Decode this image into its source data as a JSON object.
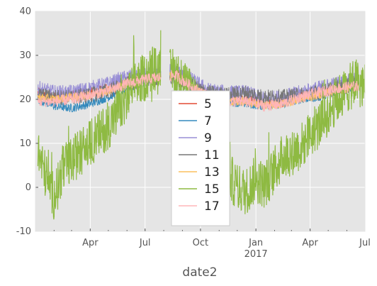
{
  "chart_data": {
    "type": "line",
    "xlabel": "date2",
    "ylabel": "",
    "ylim": [
      -10,
      40
    ],
    "yticks": [
      -10,
      0,
      10,
      20,
      30,
      40
    ],
    "xlim": [
      "2016-01-01",
      "2017-07-01"
    ],
    "xticks": [
      {
        "date": "2016-04-01",
        "label": "Apr"
      },
      {
        "date": "2016-07-01",
        "label": "Jul"
      },
      {
        "date": "2016-10-01",
        "label": "Oct"
      },
      {
        "date": "2017-01-01",
        "label": "Jan",
        "sublabel": "2017"
      },
      {
        "date": "2017-04-01",
        "label": "Apr"
      },
      {
        "date": "2017-07-01",
        "label": "Jul"
      }
    ],
    "grid": true,
    "legend_position": "center",
    "series": [
      {
        "name": "5",
        "color": "#e24a33",
        "points": [
          [
            "2016-01-05",
            21.5
          ],
          [
            "2016-02-01",
            20.5
          ],
          [
            "2016-03-01",
            20.8
          ],
          [
            "2016-04-01",
            21.5
          ],
          [
            "2016-05-01",
            22.5
          ],
          [
            "2016-06-01",
            24.0
          ],
          [
            "2016-07-01",
            25.0
          ],
          [
            "2016-07-27",
            25.5
          ],
          [
            "2016-08-20",
            26.0
          ],
          [
            "2016-09-15",
            23.5
          ],
          [
            "2016-10-15",
            21.0
          ],
          [
            "2016-11-15",
            20.0
          ],
          [
            "2016-12-15",
            20.0
          ],
          [
            "2017-01-15",
            19.0
          ],
          [
            "2017-02-15",
            19.5
          ],
          [
            "2017-03-15",
            20.5
          ],
          [
            "2017-04-15",
            21.5
          ],
          [
            "2017-05-15",
            22.5
          ],
          [
            "2017-06-20",
            23.0
          ]
        ]
      },
      {
        "name": "7",
        "color": "#348abd",
        "points": [
          [
            "2016-01-05",
            20.0
          ],
          [
            "2016-02-01",
            18.5
          ],
          [
            "2016-03-01",
            18.0
          ],
          [
            "2016-04-01",
            19.0
          ],
          [
            "2016-05-01",
            20.5
          ],
          [
            "2016-06-01",
            22.5
          ],
          [
            "2016-07-01",
            24.0
          ],
          [
            "2016-07-27",
            25.0
          ],
          [
            "2016-08-20",
            25.5
          ],
          [
            "2016-09-15",
            22.5
          ],
          [
            "2016-10-15",
            20.5
          ],
          [
            "2016-11-15",
            19.5
          ],
          [
            "2016-12-15",
            19.0
          ],
          [
            "2017-01-15",
            18.5
          ],
          [
            "2017-02-15",
            19.0
          ],
          [
            "2017-03-15",
            20.0
          ],
          [
            "2017-04-15",
            20.5
          ],
          [
            "2017-05-15",
            22.0
          ],
          [
            "2017-06-20",
            23.0
          ]
        ]
      },
      {
        "name": "9",
        "color": "#988ed5",
        "points": [
          [
            "2016-01-05",
            22.5
          ],
          [
            "2016-02-01",
            21.5
          ],
          [
            "2016-03-01",
            21.5
          ],
          [
            "2016-04-01",
            22.5
          ],
          [
            "2016-05-01",
            23.5
          ],
          [
            "2016-06-01",
            25.0
          ],
          [
            "2016-07-01",
            25.5
          ],
          [
            "2016-07-27",
            26.0
          ],
          [
            "2016-08-20",
            26.5
          ],
          [
            "2016-09-15",
            24.5
          ],
          [
            "2016-10-15",
            22.0
          ],
          [
            "2016-11-15",
            21.5
          ],
          [
            "2016-12-15",
            21.5
          ],
          [
            "2017-01-15",
            20.0
          ],
          [
            "2017-02-15",
            20.5
          ],
          [
            "2017-03-15",
            21.5
          ],
          [
            "2017-04-15",
            22.5
          ],
          [
            "2017-05-15",
            23.5
          ],
          [
            "2017-06-20",
            24.5
          ]
        ]
      },
      {
        "name": "11",
        "color": "#777777",
        "points": [
          [
            "2016-01-05",
            21.0
          ],
          [
            "2016-02-01",
            20.5
          ],
          [
            "2016-03-01",
            20.5
          ],
          [
            "2016-04-01",
            21.0
          ],
          [
            "2016-05-01",
            22.0
          ],
          [
            "2016-06-01",
            23.5
          ],
          [
            "2016-07-01",
            24.5
          ],
          [
            "2016-07-27",
            25.0
          ],
          [
            "2016-08-20",
            25.0
          ],
          [
            "2016-09-15",
            23.0
          ],
          [
            "2016-10-15",
            21.5
          ],
          [
            "2016-11-15",
            21.0
          ],
          [
            "2016-12-15",
            21.5
          ],
          [
            "2017-01-15",
            20.5
          ],
          [
            "2017-02-15",
            20.5
          ],
          [
            "2017-03-15",
            21.0
          ],
          [
            "2017-04-15",
            21.5
          ],
          [
            "2017-05-15",
            22.5
          ],
          [
            "2017-06-20",
            23.5
          ]
        ]
      },
      {
        "name": "13",
        "color": "#fbc15e",
        "points": [
          [
            "2016-01-05",
            20.5
          ],
          [
            "2016-02-01",
            20.0
          ],
          [
            "2016-03-01",
            20.5
          ],
          [
            "2016-04-01",
            21.0
          ],
          [
            "2016-05-01",
            22.0
          ],
          [
            "2016-06-01",
            23.5
          ],
          [
            "2016-07-01",
            24.5
          ],
          [
            "2016-07-27",
            25.0
          ],
          [
            "2016-08-20",
            25.5
          ],
          [
            "2016-09-15",
            23.0
          ],
          [
            "2016-10-15",
            20.5
          ],
          [
            "2016-11-15",
            19.5
          ],
          [
            "2016-12-15",
            19.5
          ],
          [
            "2017-01-15",
            18.5
          ],
          [
            "2017-02-15",
            19.0
          ],
          [
            "2017-03-15",
            20.0
          ],
          [
            "2017-04-15",
            21.0
          ],
          [
            "2017-05-15",
            22.0
          ],
          [
            "2017-06-20",
            23.0
          ]
        ]
      },
      {
        "name": "15",
        "color": "#8eba42",
        "points": [
          [
            "2016-01-05",
            8.0
          ],
          [
            "2016-01-20",
            2.0
          ],
          [
            "2016-02-01",
            -2.0
          ],
          [
            "2016-02-15",
            4.0
          ],
          [
            "2016-03-01",
            6.0
          ],
          [
            "2016-03-15",
            8.0
          ],
          [
            "2016-04-01",
            10.0
          ],
          [
            "2016-04-15",
            12.0
          ],
          [
            "2016-05-01",
            14.0
          ],
          [
            "2016-05-15",
            17.0
          ],
          [
            "2016-06-01",
            20.0
          ],
          [
            "2016-06-15",
            24.0
          ],
          [
            "2016-07-01",
            25.0
          ],
          [
            "2016-07-15",
            27.0
          ],
          [
            "2016-07-25",
            26.0
          ],
          [
            "2016-08-20",
            26.0
          ],
          [
            "2016-09-15",
            21.0
          ],
          [
            "2016-10-01",
            17.0
          ],
          [
            "2016-10-15",
            12.0
          ],
          [
            "2016-11-01",
            7.0
          ],
          [
            "2016-11-15",
            3.0
          ],
          [
            "2016-12-01",
            0.0
          ],
          [
            "2016-12-15",
            -1.0
          ],
          [
            "2017-01-01",
            2.0
          ],
          [
            "2017-01-15",
            0.5
          ],
          [
            "2017-02-01",
            4.0
          ],
          [
            "2017-02-15",
            7.0
          ],
          [
            "2017-03-01",
            8.0
          ],
          [
            "2017-03-15",
            9.0
          ],
          [
            "2017-04-01",
            12.0
          ],
          [
            "2017-04-15",
            14.0
          ],
          [
            "2017-05-01",
            17.0
          ],
          [
            "2017-05-15",
            20.0
          ],
          [
            "2017-06-01",
            22.0
          ],
          [
            "2017-06-15",
            24.0
          ],
          [
            "2017-07-01",
            23.0
          ]
        ]
      },
      {
        "name": "17",
        "color": "#ffb5b8",
        "points": [
          [
            "2016-01-05",
            19.5
          ],
          [
            "2016-02-01",
            19.5
          ],
          [
            "2016-03-01",
            20.0
          ],
          [
            "2016-04-01",
            21.0
          ],
          [
            "2016-05-01",
            22.0
          ],
          [
            "2016-06-01",
            23.5
          ],
          [
            "2016-07-01",
            24.5
          ],
          [
            "2016-07-27",
            25.0
          ],
          [
            "2016-08-20",
            25.5
          ],
          [
            "2016-09-15",
            23.0
          ],
          [
            "2016-10-15",
            20.5
          ],
          [
            "2016-11-15",
            19.5
          ],
          [
            "2016-12-15",
            19.5
          ],
          [
            "2017-01-15",
            18.5
          ],
          [
            "2017-02-15",
            19.0
          ],
          [
            "2017-03-15",
            20.5
          ],
          [
            "2017-04-15",
            21.5
          ],
          [
            "2017-05-15",
            22.5
          ],
          [
            "2017-06-20",
            23.0
          ]
        ]
      }
    ],
    "gaps": [
      [
        "2016-07-27",
        "2016-08-11"
      ]
    ]
  }
}
